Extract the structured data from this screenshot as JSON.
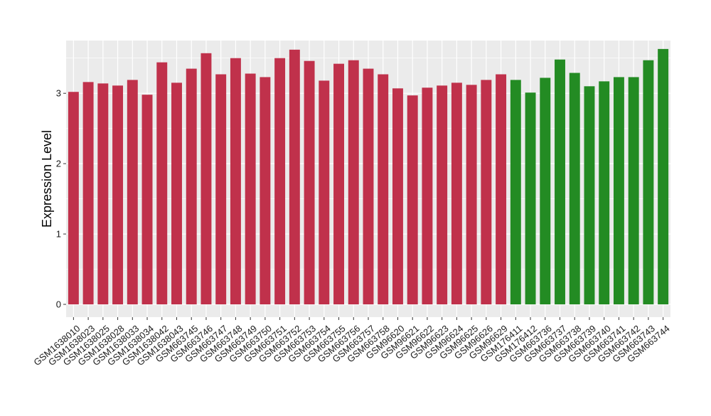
{
  "chart_data": {
    "type": "bar",
    "title": "",
    "xlabel": "",
    "ylabel": "Expression Level",
    "ylim": [
      0,
      3.75
    ],
    "yticks": [
      0,
      1,
      2,
      3
    ],
    "grid": true,
    "legend": "none",
    "colors": {
      "group1": "#C0314B",
      "group2": "#238B23",
      "panel": "#EBEBEB",
      "gridline": "#FFFFFF"
    },
    "categories": [
      "GSM1638010",
      "GSM1638023",
      "GSM1638025",
      "GSM1638028",
      "GSM1638033",
      "GSM1638034",
      "GSM1638042",
      "GSM1638043",
      "GSM663745",
      "GSM663746",
      "GSM663747",
      "GSM663748",
      "GSM663749",
      "GSM663750",
      "GSM663751",
      "GSM663752",
      "GSM663753",
      "GSM663754",
      "GSM663755",
      "GSM663756",
      "GSM663757",
      "GSM663758",
      "GSM96620",
      "GSM96621",
      "GSM96622",
      "GSM96623",
      "GSM96624",
      "GSM96625",
      "GSM96626",
      "GSM96629",
      "GSM176411",
      "GSM176412",
      "GSM663736",
      "GSM663737",
      "GSM663738",
      "GSM663739",
      "GSM663740",
      "GSM663741",
      "GSM663742",
      "GSM663743",
      "GSM663744"
    ],
    "values": [
      3.02,
      3.16,
      3.14,
      3.11,
      3.19,
      2.98,
      3.44,
      3.15,
      3.35,
      3.57,
      3.27,
      3.5,
      3.28,
      3.23,
      3.5,
      3.62,
      3.46,
      3.18,
      3.42,
      3.47,
      3.35,
      3.27,
      3.07,
      2.97,
      3.08,
      3.11,
      3.15,
      3.12,
      3.19,
      3.27,
      3.19,
      3.01,
      3.22,
      3.48,
      3.29,
      3.1,
      3.17,
      3.23,
      3.23,
      3.47,
      3.63
    ],
    "groups": [
      1,
      1,
      1,
      1,
      1,
      1,
      1,
      1,
      1,
      1,
      1,
      1,
      1,
      1,
      1,
      1,
      1,
      1,
      1,
      1,
      1,
      1,
      1,
      1,
      1,
      1,
      1,
      1,
      1,
      1,
      2,
      2,
      2,
      2,
      2,
      2,
      2,
      2,
      2,
      2,
      2
    ]
  }
}
